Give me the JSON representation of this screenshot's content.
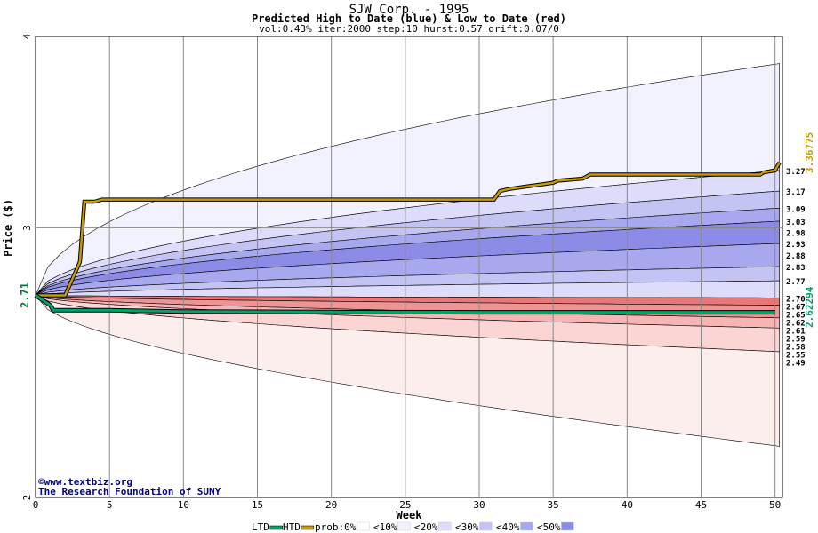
{
  "title": "SJW Corp. - 1995",
  "subtitle": "Predicted High to Date (blue) &  Low to Date (red)",
  "params": "vol:0.43% iter:2000 step:10 hurst:0.57 drift:0.07/0",
  "credit_line1": "©www.textbiz.org",
  "credit_line2": "The Research Foundation of SUNY",
  "colors": {
    "htd": "#c89b00",
    "ltd": "#00a36c",
    "band10": "#f2f2ff",
    "band20": "#ddddfb",
    "band30": "#c4c4f4",
    "band40": "#a8a8ee",
    "band50": "#8c8ce6",
    "red10": "#fdeeee",
    "red20": "#fbd4d4",
    "red30": "#f6b4b4",
    "red40": "#ef9494",
    "red50": "#e87878",
    "grid": "#888888"
  },
  "chart_data": {
    "type": "area",
    "title": "SJW Corp. - 1995",
    "subtitle": "Predicted High to Date (blue) &  Low to Date (red)",
    "xlabel": "Week",
    "ylabel": "Price ($)",
    "xlim": [
      0,
      50.5
    ],
    "ylim": [
      2,
      4
    ],
    "y_scale": "log",
    "x_ticks": [
      0,
      5,
      10,
      15,
      20,
      25,
      30,
      35,
      40,
      45,
      50
    ],
    "y_ticks": [
      2,
      3,
      4
    ],
    "start_price": "2.71",
    "start_price_value": 2.71,
    "htd_final_label": "3.36775",
    "ltd_final_label": "2.62294",
    "right_labels": [
      "3.27",
      "3.17",
      "3.09",
      "3.03",
      "2.98",
      "2.93",
      "2.88",
      "2.83",
      "2.77",
      "2.70",
      "2.67",
      "2.65",
      "2.62",
      "2.61",
      "2.59",
      "2.58",
      "2.55",
      "2.49"
    ],
    "htd_series": [
      [
        0,
        2.71
      ],
      [
        1,
        2.71
      ],
      [
        2,
        2.71
      ],
      [
        3,
        2.85
      ],
      [
        3.3,
        3.12
      ],
      [
        4,
        3.12
      ],
      [
        4.5,
        3.13
      ],
      [
        31,
        3.13
      ],
      [
        31.4,
        3.17
      ],
      [
        32,
        3.18
      ],
      [
        33,
        3.19
      ],
      [
        34,
        3.2
      ],
      [
        35,
        3.21
      ],
      [
        35.3,
        3.22
      ],
      [
        37,
        3.23
      ],
      [
        37.5,
        3.25
      ],
      [
        49,
        3.25
      ],
      [
        49.2,
        3.26
      ],
      [
        50,
        3.27
      ],
      [
        50.3,
        3.31
      ]
    ],
    "ltd_series": [
      [
        0,
        2.71
      ],
      [
        0.5,
        2.69
      ],
      [
        1,
        2.67
      ],
      [
        1.2,
        2.65
      ],
      [
        5,
        2.65
      ],
      [
        10,
        2.645
      ],
      [
        20,
        2.643
      ],
      [
        30,
        2.642
      ],
      [
        40,
        2.642
      ],
      [
        50,
        2.642
      ]
    ],
    "legend": [
      "LTD",
      "HTD",
      "prob:0%",
      "<10%",
      "<20%",
      "<30%",
      "<40%",
      "<50%"
    ]
  }
}
